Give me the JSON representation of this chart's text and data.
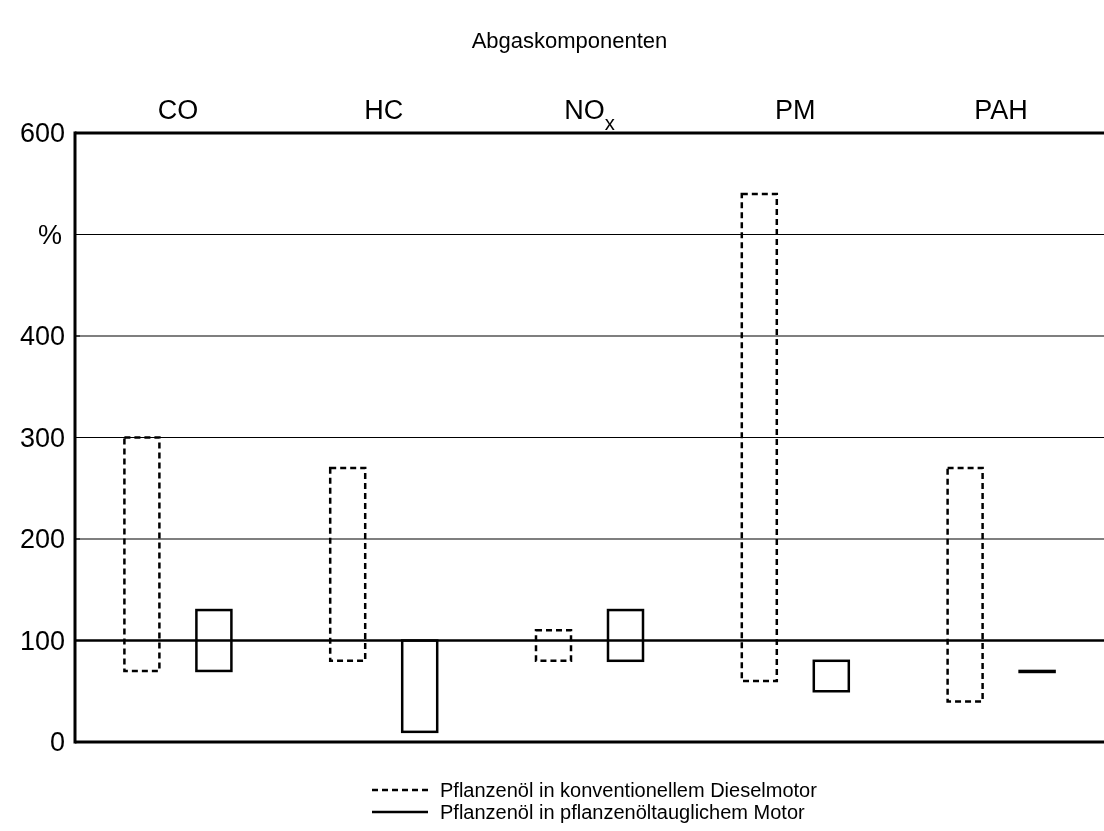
{
  "chart_data": {
    "type": "bar",
    "title": "Abgaskomponenten",
    "ylabel": "%",
    "categories": [
      "CO",
      "HC",
      "NO$_{x}$",
      "PM",
      "PAH"
    ],
    "series": [
      {
        "name": "Pflanzenöl in konventionellem Dieselmotor",
        "color": "#000000",
        "line_style": "dashed",
        "base": [
          70,
          80,
          80,
          60,
          40
        ],
        "values": [
          230,
          190,
          30,
          480,
          230
        ]
      },
      {
        "name": "Pflanzenöl in pflanzenöltauglichem Motor",
        "color": "#000000",
        "line_style": "solid",
        "base": [
          70,
          10,
          80,
          50,
          69
        ],
        "values": [
          60,
          90,
          50,
          30,
          1
        ]
      }
    ],
    "ylim": [
      0,
      600
    ],
    "yticks": [
      0,
      100,
      200,
      300,
      400,
      {
        "value": 500,
        "label": null
      },
      600
    ],
    "grid": "y",
    "ref_lines": [
      {
        "axis": "y",
        "value": 100,
        "color": "#000000"
      }
    ],
    "legend": "bottom"
  }
}
